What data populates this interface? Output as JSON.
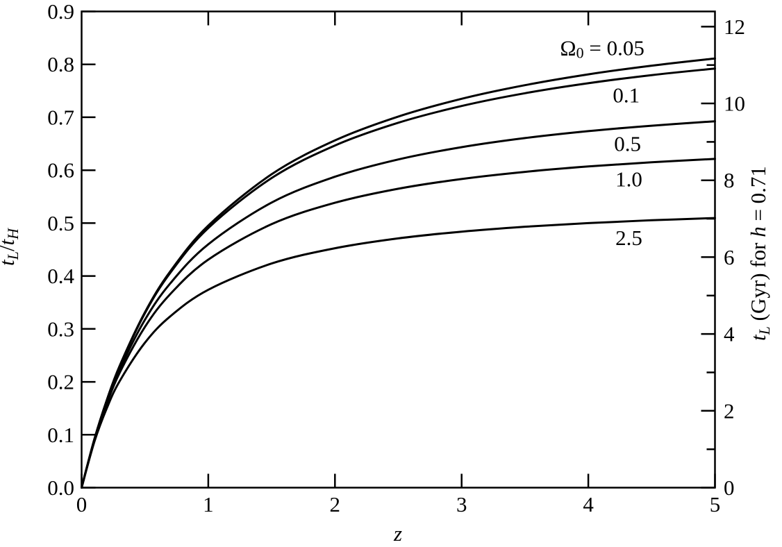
{
  "figure": {
    "background": "#ffffff",
    "ink": "#000000"
  },
  "chart_data": {
    "type": "line",
    "grid": false,
    "legend": "inline-curve-labels",
    "xlabel": "z",
    "xlim": [
      0,
      5
    ],
    "x_ticks": [
      0,
      1,
      2,
      3,
      4,
      5
    ],
    "left_axis": {
      "label_text": "tL/tH",
      "label_parts": {
        "var1": "t",
        "sub1": "L",
        "slash": "/",
        "var2": "t",
        "sub2": "H"
      },
      "lim": [
        0,
        0.9
      ],
      "ticks": [
        "0.0",
        "0.1",
        "0.2",
        "0.3",
        "0.4",
        "0.5",
        "0.6",
        "0.7",
        "0.8",
        "0.9"
      ]
    },
    "right_axis": {
      "label_text": "tL (Gyr) for h = 0.71",
      "label_parts": {
        "var": "t",
        "sub": "L",
        "mid": " (Gyr) for ",
        "h": "h",
        "eq": " = 0.71"
      },
      "hubble_time_gyr": 13.772,
      "major_ticks_gyr": [
        0,
        2,
        4,
        6,
        8,
        10,
        12
      ],
      "minor_ticks_gyr": [
        1,
        3,
        5,
        7,
        9,
        11
      ]
    },
    "x": [
      0,
      0.1,
      0.2,
      0.3,
      0.5,
      0.7,
      1.0,
      1.5,
      2.0,
      2.5,
      3.0,
      3.5,
      4.0,
      4.5,
      5.0
    ],
    "series": [
      {
        "name": "omega0-0.05",
        "label_parts": {
          "omega": "Ω",
          "sub": "0",
          "rest": " = 0.05"
        },
        "label_z": 4.11,
        "label_t": 0.832,
        "values": [
          0,
          0.0908,
          0.1663,
          0.23,
          0.3315,
          0.4088,
          0.4953,
          0.5923,
          0.6563,
          0.7014,
          0.7349,
          0.7607,
          0.7811,
          0.7976,
          0.8112
        ]
      },
      {
        "name": "omega0-0.1",
        "label": "0.1",
        "label_z": 4.3,
        "label_t": 0.742,
        "values": [
          0,
          0.0907,
          0.1659,
          0.2292,
          0.3298,
          0.406,
          0.4907,
          0.5851,
          0.6467,
          0.6897,
          0.7213,
          0.7455,
          0.7644,
          0.7797,
          0.7922
        ]
      },
      {
        "name": "omega0-0.5",
        "label": "0.5",
        "label_z": 4.31,
        "label_t": 0.65,
        "values": [
          0,
          0.0898,
          0.1629,
          0.2234,
          0.3173,
          0.3861,
          0.46,
          0.5388,
          0.5876,
          0.6203,
          0.6435,
          0.6607,
          0.6738,
          0.6841,
          0.6924
        ]
      },
      {
        "name": "omega0-1.0",
        "label": "1.0",
        "label_z": 4.32,
        "label_t": 0.583,
        "values": [
          0,
          0.0888,
          0.1595,
          0.2169,
          0.3038,
          0.3659,
          0.431,
          0.498,
          0.5384,
          0.5649,
          0.5833,
          0.5968,
          0.607,
          0.615,
          0.6213
        ]
      },
      {
        "name": "omega0-2.5",
        "label": "2.5",
        "label_z": 4.32,
        "label_t": 0.472,
        "values": [
          0,
          0.086,
          0.1508,
          0.2011,
          0.274,
          0.3238,
          0.374,
          0.4236,
          0.4525,
          0.4711,
          0.4838,
          0.4931,
          0.5,
          0.5053,
          0.5095
        ]
      }
    ]
  }
}
